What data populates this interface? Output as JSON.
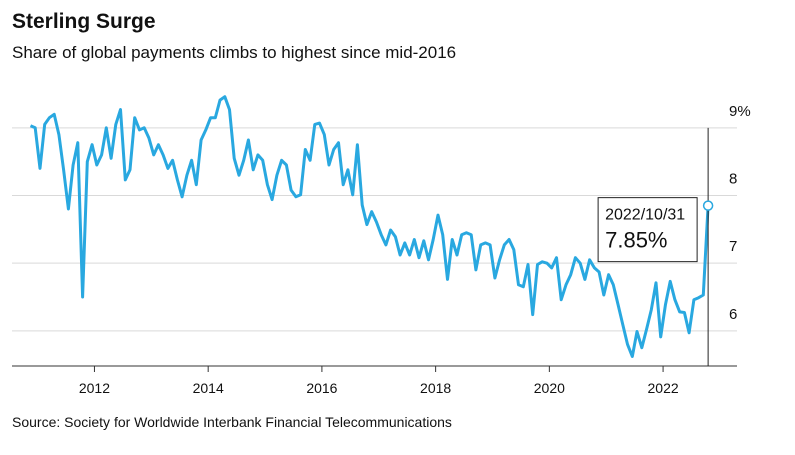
{
  "chart_data": {
    "type": "line",
    "title": "Sterling Surge",
    "subtitle": "Share of global payments climbs to highest since mid-2016",
    "source": "Source: Society for Worldwide Interbank Financial Telecommunications",
    "color": "#29a8e0",
    "x": [
      2010.875,
      2010.958,
      2011.042,
      2011.125,
      2011.208,
      2011.292,
      2011.375,
      2011.458,
      2011.542,
      2011.625,
      2011.708,
      2011.792,
      2011.875,
      2011.958,
      2012.042,
      2012.125,
      2012.208,
      2012.292,
      2012.375,
      2012.458,
      2012.542,
      2012.625,
      2012.708,
      2012.792,
      2012.875,
      2012.958,
      2013.042,
      2013.125,
      2013.208,
      2013.292,
      2013.375,
      2013.458,
      2013.542,
      2013.625,
      2013.708,
      2013.792,
      2013.875,
      2013.958,
      2014.042,
      2014.125,
      2014.208,
      2014.292,
      2014.375,
      2014.458,
      2014.542,
      2014.625,
      2014.708,
      2014.792,
      2014.875,
      2014.958,
      2015.042,
      2015.125,
      2015.208,
      2015.292,
      2015.375,
      2015.458,
      2015.542,
      2015.625,
      2015.708,
      2015.792,
      2015.875,
      2015.958,
      2016.042,
      2016.125,
      2016.208,
      2016.292,
      2016.375,
      2016.458,
      2016.542,
      2016.625,
      2016.708,
      2016.792,
      2016.875,
      2016.958,
      2017.042,
      2017.125,
      2017.208,
      2017.292,
      2017.375,
      2017.458,
      2017.542,
      2017.625,
      2017.708,
      2017.792,
      2017.875,
      2017.958,
      2018.042,
      2018.125,
      2018.208,
      2018.292,
      2018.375,
      2018.458,
      2018.542,
      2018.625,
      2018.708,
      2018.792,
      2018.875,
      2018.958,
      2019.042,
      2019.125,
      2019.208,
      2019.292,
      2019.375,
      2019.458,
      2019.542,
      2019.625,
      2019.708,
      2019.792,
      2019.875,
      2019.958,
      2020.042,
      2020.125,
      2020.208,
      2020.292,
      2020.375,
      2020.458,
      2020.542,
      2020.625,
      2020.708,
      2020.792,
      2020.875,
      2020.958,
      2021.042,
      2021.125,
      2021.208,
      2021.292,
      2021.375,
      2021.458,
      2021.542,
      2021.625,
      2021.708,
      2021.792,
      2021.875,
      2021.958,
      2022.042,
      2022.125,
      2022.208,
      2022.292,
      2022.375,
      2022.458,
      2022.542,
      2022.625,
      2022.708,
      2022.792
    ],
    "values": [
      9.03,
      9.0,
      8.4,
      9.05,
      9.15,
      9.2,
      8.9,
      8.38,
      7.8,
      8.45,
      8.78,
      6.5,
      8.5,
      8.75,
      8.45,
      8.6,
      9.0,
      8.55,
      9.05,
      9.27,
      8.23,
      8.38,
      9.15,
      8.97,
      9.0,
      8.85,
      8.6,
      8.75,
      8.6,
      8.4,
      8.52,
      8.23,
      7.98,
      8.3,
      8.52,
      8.16,
      8.82,
      8.97,
      9.15,
      9.15,
      9.41,
      9.46,
      9.27,
      8.55,
      8.3,
      8.52,
      8.82,
      8.38,
      8.6,
      8.52,
      8.16,
      7.94,
      8.3,
      8.52,
      8.45,
      8.08,
      7.98,
      8.01,
      8.68,
      8.52,
      9.05,
      9.07,
      8.9,
      8.45,
      8.68,
      8.78,
      8.16,
      8.38,
      8.01,
      8.75,
      7.86,
      7.57,
      7.76,
      7.61,
      7.42,
      7.27,
      7.49,
      7.39,
      7.12,
      7.3,
      7.12,
      7.35,
      7.08,
      7.33,
      7.05,
      7.35,
      7.71,
      7.42,
      6.76,
      7.35,
      7.12,
      7.42,
      7.45,
      7.42,
      6.9,
      7.27,
      7.3,
      7.27,
      6.78,
      7.05,
      7.27,
      7.35,
      7.2,
      6.68,
      6.65,
      6.98,
      6.24,
      6.98,
      7.02,
      7.0,
      6.93,
      7.08,
      6.46,
      6.68,
      6.83,
      7.08,
      7.0,
      6.76,
      7.05,
      6.93,
      6.87,
      6.53,
      6.83,
      6.68,
      6.39,
      6.09,
      5.8,
      5.62,
      5.99,
      5.75,
      6.02,
      6.31,
      6.71,
      5.91,
      6.39,
      6.73,
      6.46,
      6.28,
      6.27,
      5.97,
      6.46,
      6.49,
      6.53,
      7.85
    ],
    "annotation": {
      "label": "2022/10/31",
      "value_label": "7.85%"
    },
    "xlim": [
      2010.55,
      2023.3
    ],
    "xticks": [
      2012,
      2014,
      2016,
      2018,
      2020,
      2022
    ],
    "ylim": [
      5.48,
      9.5
    ],
    "yticks": [
      6,
      7,
      8,
      {
        "value": 9,
        "label": "9%"
      }
    ],
    "grid": true
  }
}
